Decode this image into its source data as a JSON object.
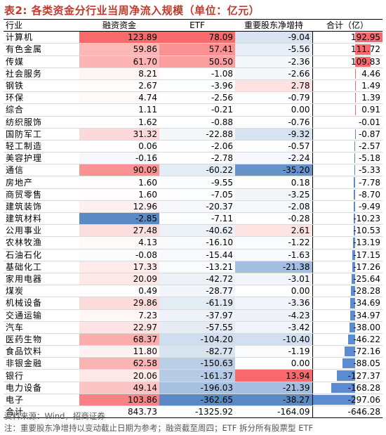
{
  "title": "表2: 各类资金分行业当周净流入规模（单位：亿元）",
  "headers": [
    "行业",
    "融资资金",
    "ETF",
    "重要股东净增持",
    "合计（亿）"
  ],
  "rows": [
    {
      "name": "计算机",
      "financing": "123.89",
      "etf": "78.09",
      "holder": "-9.04",
      "total": "192.95"
    },
    {
      "name": "有色金属",
      "financing": "59.86",
      "etf": "57.41",
      "holder": "-5.56",
      "total": "111.72"
    },
    {
      "name": "传媒",
      "financing": "61.70",
      "etf": "50.50",
      "holder": "-2.36",
      "total": "109.83"
    },
    {
      "name": "社会服务",
      "financing": "8.21",
      "etf": "-1.08",
      "holder": "-2.66",
      "total": "4.46"
    },
    {
      "name": "钢铁",
      "financing": "2.67",
      "etf": "-3.96",
      "holder": "2.78",
      "total": "1.49"
    },
    {
      "name": "环保",
      "financing": "4.74",
      "etf": "-2.56",
      "holder": "-0.79",
      "total": "1.39"
    },
    {
      "name": "综合",
      "financing": "1.11",
      "etf": "-0.21",
      "holder": "0.00",
      "total": "0.91"
    },
    {
      "name": "纺织服饰",
      "financing": "1.62",
      "etf": "-0.88",
      "holder": "-0.76",
      "total": "-0.01"
    },
    {
      "name": "国防军工",
      "financing": "31.32",
      "etf": "-22.88",
      "holder": "-9.32",
      "total": "-0.87"
    },
    {
      "name": "轻工制造",
      "financing": "0.06",
      "etf": "-2.06",
      "holder": "-0.57",
      "total": "-2.57"
    },
    {
      "name": "美容护理",
      "financing": "-0.16",
      "etf": "-2.78",
      "holder": "-2.24",
      "total": "-5.18"
    },
    {
      "name": "通信",
      "financing": "90.09",
      "etf": "-60.22",
      "holder": "-35.20",
      "total": "-5.33"
    },
    {
      "name": "房地产",
      "financing": "1.60",
      "etf": "-9.55",
      "holder": "0.18",
      "total": "-7.78"
    },
    {
      "name": "商贸零售",
      "financing": "1.60",
      "etf": "-7.05",
      "holder": "-3.25",
      "total": "-8.70"
    },
    {
      "name": "建筑装饰",
      "financing": "12.96",
      "etf": "-20.37",
      "holder": "-2.08",
      "total": "-9.49"
    },
    {
      "name": "建筑材料",
      "financing": "-2.85",
      "etf": "-7.11",
      "holder": "-0.28",
      "total": "-10.23"
    },
    {
      "name": "公用事业",
      "financing": "27.48",
      "etf": "-40.62",
      "holder": "2.61",
      "total": "-10.53"
    },
    {
      "name": "农林牧渔",
      "financing": "4.13",
      "etf": "-16.10",
      "holder": "-1.22",
      "total": "-13.19"
    },
    {
      "name": "石油石化",
      "financing": "-0.08",
      "etf": "-15.44",
      "holder": "-1.63",
      "total": "-17.15"
    },
    {
      "name": "基础化工",
      "financing": "17.33",
      "etf": "-13.21",
      "holder": "-21.38",
      "total": "-17.26"
    },
    {
      "name": "家用电器",
      "financing": "20.09",
      "etf": "-42.72",
      "holder": "-3.01",
      "total": "-25.64"
    },
    {
      "name": "煤炭",
      "financing": "0.49",
      "etf": "-28.77",
      "holder": "0.00",
      "total": "-28.28"
    },
    {
      "name": "机械设备",
      "financing": "29.86",
      "etf": "-61.19",
      "holder": "-3.36",
      "total": "-34.69"
    },
    {
      "name": "交通运输",
      "financing": "7.23",
      "etf": "-37.97",
      "holder": "-4.23",
      "total": "-34.97"
    },
    {
      "name": "汽车",
      "financing": "22.97",
      "etf": "-57.55",
      "holder": "-3.42",
      "total": "-38.00"
    },
    {
      "name": "医药生物",
      "financing": "68.37",
      "etf": "-104.20",
      "holder": "-10.40",
      "total": "-46.22"
    },
    {
      "name": "食品饮料",
      "financing": "11.80",
      "etf": "-82.77",
      "holder": "-1.19",
      "total": "-72.16"
    },
    {
      "name": "非银金融",
      "financing": "62.58",
      "etf": "-150.63",
      "holder": "0.00",
      "total": "-88.05"
    },
    {
      "name": "银行",
      "financing": "20.06",
      "etf": "-161.37",
      "holder": "13.94",
      "total": "-127.37"
    },
    {
      "name": "电力设备",
      "financing": "49.14",
      "etf": "-196.03",
      "holder": "-21.39",
      "total": "-168.28"
    },
    {
      "name": "电子",
      "financing": "103.86",
      "etf": "-362.65",
      "holder": "-38.27",
      "total": "-297.06"
    }
  ],
  "total_row": {
    "name": "合计",
    "financing": "843.73",
    "etf": "-1325.92",
    "holder": "-164.09",
    "total": "-646.28"
  },
  "notes": {
    "source": "资料来源：Wind，招商证券",
    "remark": "注：重要股东净增持以变动截止日期为参考；融资截至周四；ETF 拆分所有股票型 ETF"
  },
  "colors": {
    "positive": "#f8696b",
    "negative": "#5a8ac6",
    "neutral": "#ffffff",
    "title": "#c0392b",
    "total_bar": "#5b8bd0"
  }
}
